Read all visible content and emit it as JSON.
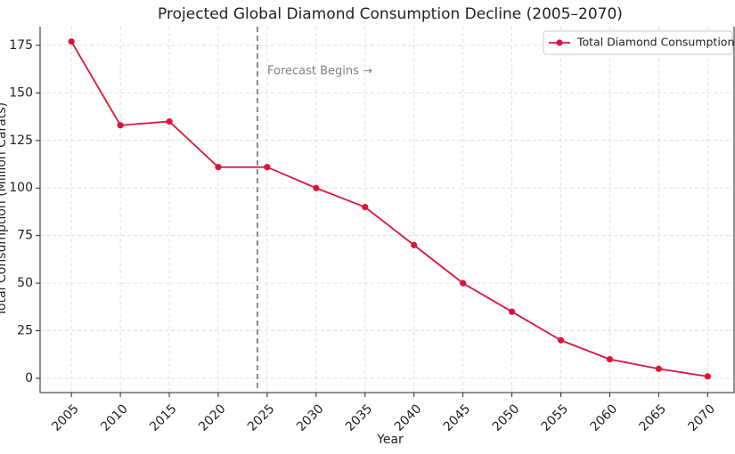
{
  "chart_data": {
    "type": "line",
    "title": "Projected Global Diamond Consumption Decline (2005–2070)",
    "x_label": "Year",
    "y_label": "Total Consumption (Million Carats)",
    "x": [
      2005,
      2010,
      2015,
      2020,
      2025,
      2030,
      2035,
      2040,
      2045,
      2050,
      2055,
      2060,
      2065,
      2070
    ],
    "series": [
      {
        "name": "Total Diamond Consumption",
        "color": "#dc143c",
        "values": [
          177,
          133,
          135,
          111,
          111,
          100,
          90,
          70,
          50,
          35,
          20,
          10,
          5,
          1
        ]
      }
    ],
    "xlim": [
      2001.8,
      2072.7
    ],
    "ylim": [
      -7.5,
      184.8
    ],
    "xticks": [
      2005,
      2010,
      2015,
      2020,
      2025,
      2030,
      2035,
      2040,
      2045,
      2050,
      2055,
      2060,
      2065,
      2070
    ],
    "yticks": [
      0,
      25,
      50,
      75,
      100,
      125,
      150,
      175
    ],
    "grid": true,
    "legend": "upper right",
    "vline": {
      "x": 2024,
      "color": "#808080"
    },
    "annotations": [
      {
        "text": "Forecast Begins →"
      }
    ]
  }
}
